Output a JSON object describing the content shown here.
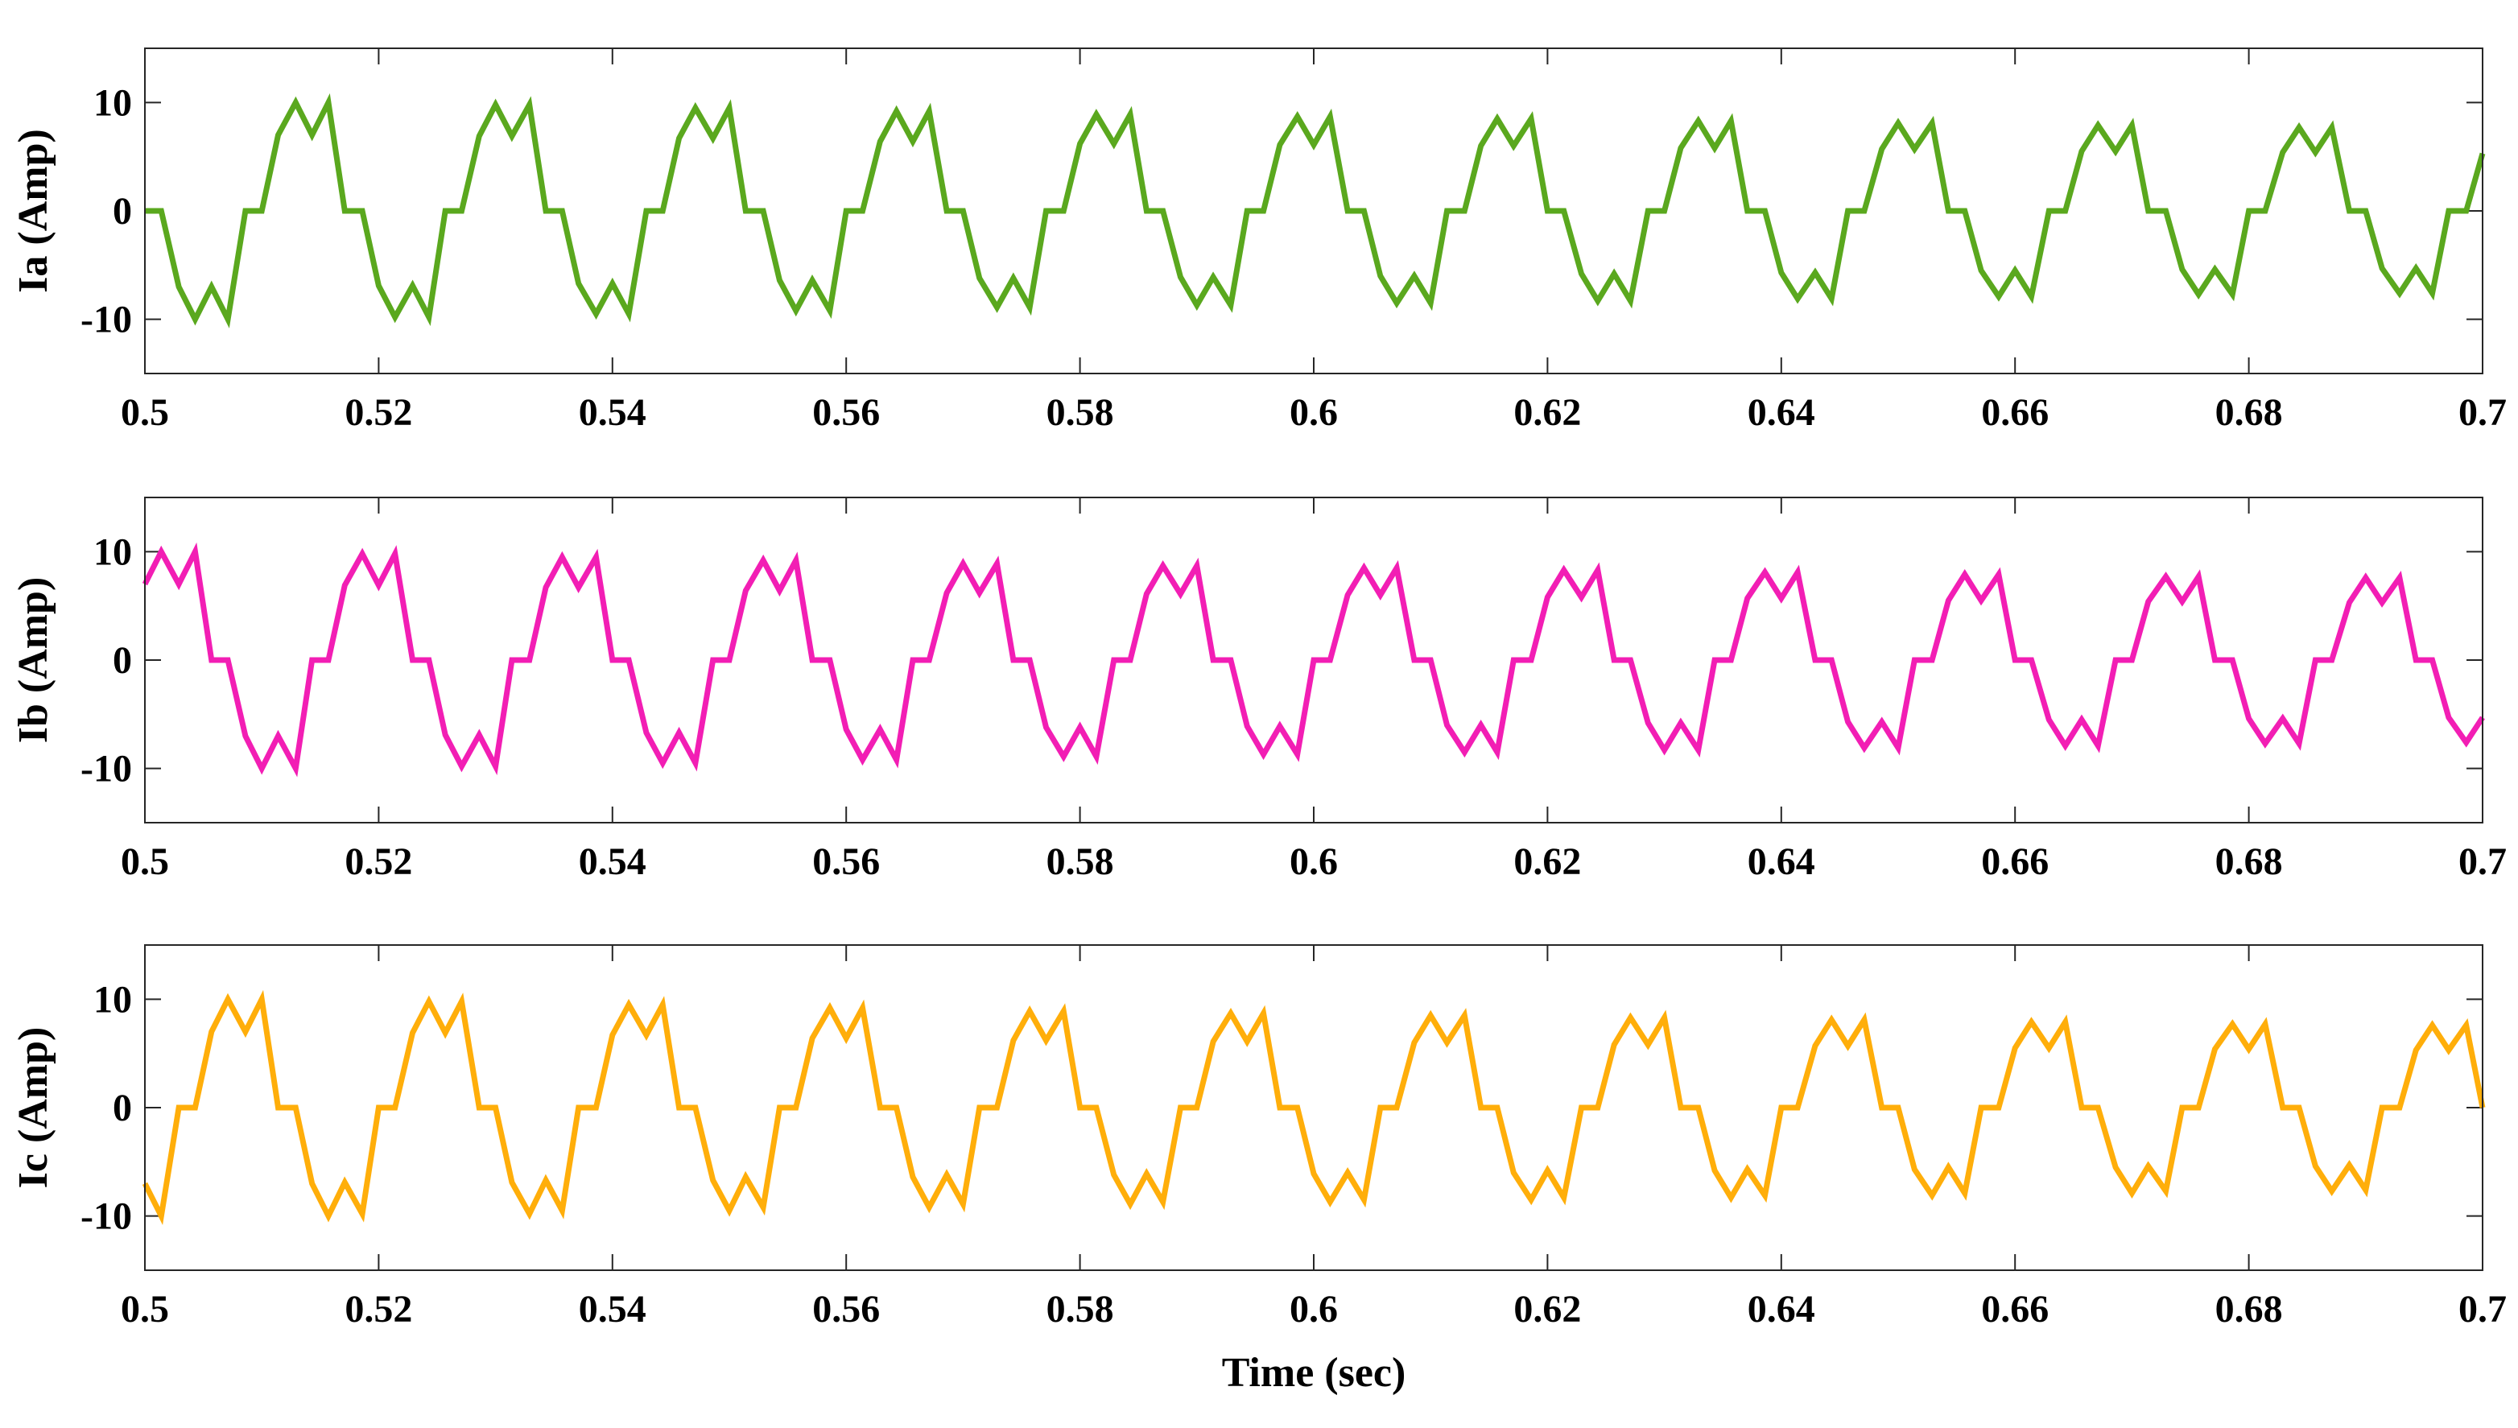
{
  "chart_data": [
    {
      "type": "line",
      "ylabel": "Ia (Amp)",
      "color": "#5aa81e",
      "xlim": [
        0.5,
        0.7
      ],
      "xticks": [
        0.5,
        0.52,
        0.54,
        0.56,
        0.58,
        0.6,
        0.62,
        0.64,
        0.66,
        0.68,
        0.7
      ],
      "ylim": [
        -15,
        15
      ],
      "yticks": [
        -10,
        0,
        10
      ],
      "x": [
        0.5,
        0.5014,
        0.5029,
        0.5043,
        0.5057,
        0.5071,
        0.5086,
        0.51,
        0.5114,
        0.5129,
        0.5143,
        0.5157,
        0.5171,
        0.5186,
        0.52,
        0.5214,
        0.5229,
        0.5243,
        0.5257,
        0.5271,
        0.5286,
        0.53,
        0.5314,
        0.5329,
        0.5343,
        0.5357,
        0.5371,
        0.5386,
        0.54,
        0.5414,
        0.5429,
        0.5443,
        0.5457,
        0.5471,
        0.5486,
        0.55,
        0.5514,
        0.5529,
        0.5543,
        0.5557,
        0.5571,
        0.5586,
        0.56,
        0.5614,
        0.5629,
        0.5643,
        0.5657,
        0.5671,
        0.5686,
        0.57,
        0.5714,
        0.5729,
        0.5743,
        0.5757,
        0.5771,
        0.5786,
        0.58,
        0.5814,
        0.5829,
        0.5843,
        0.5857,
        0.5871,
        0.5886,
        0.59,
        0.5914,
        0.5929,
        0.5943,
        0.5957,
        0.5971,
        0.5986,
        0.6,
        0.6014,
        0.6029,
        0.6043,
        0.6057,
        0.6071,
        0.6086,
        0.61,
        0.6114,
        0.6129,
        0.6143,
        0.6157,
        0.6171,
        0.6186,
        0.62,
        0.6214,
        0.6229,
        0.6243,
        0.6257,
        0.6271,
        0.6286,
        0.63,
        0.6314,
        0.6329,
        0.6343,
        0.6357,
        0.6371,
        0.6386,
        0.64,
        0.6414,
        0.6429,
        0.6443,
        0.6457,
        0.6471,
        0.6486,
        0.65,
        0.6514,
        0.6529,
        0.6543,
        0.6557,
        0.6571,
        0.6586,
        0.66,
        0.6614,
        0.6629,
        0.6643,
        0.6657,
        0.6671,
        0.6686,
        0.67,
        0.6714,
        0.6729,
        0.6743,
        0.6757,
        0.6771,
        0.6786,
        0.68,
        0.6814,
        0.6829,
        0.6843,
        0.6857,
        0.6871,
        0.6886,
        0.69,
        0.6914,
        0.6929,
        0.6943,
        0.6957,
        0.6971,
        0.6986,
        0.7
      ],
      "values": [
        0,
        0,
        -7,
        -10,
        -7,
        -10,
        0,
        0,
        7,
        10,
        7,
        10,
        0,
        0,
        -6.9,
        -9.8,
        -6.9,
        -9.8,
        0,
        0,
        6.9,
        9.8,
        6.9,
        9.8,
        0,
        0,
        -6.7,
        -9.5,
        -6.7,
        -9.5,
        0,
        0,
        6.7,
        9.5,
        6.7,
        9.5,
        0,
        0,
        -6.4,
        -9.2,
        -6.4,
        -9.2,
        0,
        0,
        6.4,
        9.2,
        6.4,
        9.2,
        0,
        0,
        -6.2,
        -8.9,
        -6.2,
        -8.9,
        0,
        0,
        6.2,
        8.9,
        6.2,
        8.9,
        0,
        0,
        -6.1,
        -8.7,
        -6.1,
        -8.7,
        0,
        0,
        6.1,
        8.7,
        6.1,
        8.7,
        0,
        0,
        -6,
        -8.5,
        -6,
        -8.5,
        0,
        0,
        6,
        8.5,
        6,
        8.5,
        0,
        0,
        -5.8,
        -8.3,
        -5.8,
        -8.3,
        0,
        0,
        5.8,
        8.3,
        5.8,
        8.3,
        0,
        0,
        -5.7,
        -8.1,
        -5.7,
        -8.1,
        0,
        0,
        5.7,
        8.1,
        5.7,
        8.1,
        0,
        0,
        -5.5,
        -7.9,
        -5.5,
        -7.9,
        0,
        0,
        5.5,
        7.9,
        5.5,
        7.9,
        0,
        0,
        -5.4,
        -7.7,
        -5.4,
        -7.7,
        0,
        0,
        5.4,
        7.7,
        5.4,
        7.7,
        0,
        0,
        -5.3,
        -7.6,
        -5.3,
        -7.6,
        0,
        0,
        5.3
      ]
    },
    {
      "type": "line",
      "ylabel": "Ib (Amp)",
      "color": "#f21eb4",
      "xlim": [
        0.5,
        0.7
      ],
      "xticks": [
        0.5,
        0.52,
        0.54,
        0.56,
        0.58,
        0.6,
        0.62,
        0.64,
        0.66,
        0.68,
        0.7
      ],
      "ylim": [
        -15,
        15
      ],
      "yticks": [
        -10,
        0,
        10
      ],
      "x": [
        0.5,
        0.5014,
        0.5029,
        0.5043,
        0.5057,
        0.5071,
        0.5086,
        0.51,
        0.5114,
        0.5129,
        0.5143,
        0.5157,
        0.5171,
        0.5186,
        0.52,
        0.5214,
        0.5229,
        0.5243,
        0.5257,
        0.5271,
        0.5286,
        0.53,
        0.5314,
        0.5329,
        0.5343,
        0.5357,
        0.5371,
        0.5386,
        0.54,
        0.5414,
        0.5429,
        0.5443,
        0.5457,
        0.5471,
        0.5486,
        0.55,
        0.5514,
        0.5529,
        0.5543,
        0.5557,
        0.5571,
        0.5586,
        0.56,
        0.5614,
        0.5629,
        0.5643,
        0.5657,
        0.5671,
        0.5686,
        0.57,
        0.5714,
        0.5729,
        0.5743,
        0.5757,
        0.5771,
        0.5786,
        0.58,
        0.5814,
        0.5829,
        0.5843,
        0.5857,
        0.5871,
        0.5886,
        0.59,
        0.5914,
        0.5929,
        0.5943,
        0.5957,
        0.5971,
        0.5986,
        0.6,
        0.6014,
        0.6029,
        0.6043,
        0.6057,
        0.6071,
        0.6086,
        0.61,
        0.6114,
        0.6129,
        0.6143,
        0.6157,
        0.6171,
        0.6186,
        0.62,
        0.6214,
        0.6229,
        0.6243,
        0.6257,
        0.6271,
        0.6286,
        0.63,
        0.6314,
        0.6329,
        0.6343,
        0.6357,
        0.6371,
        0.6386,
        0.64,
        0.6414,
        0.6429,
        0.6443,
        0.6457,
        0.6471,
        0.6486,
        0.65,
        0.6514,
        0.6529,
        0.6543,
        0.6557,
        0.6571,
        0.6586,
        0.66,
        0.6614,
        0.6629,
        0.6643,
        0.6657,
        0.6671,
        0.6686,
        0.67,
        0.6714,
        0.6729,
        0.6743,
        0.6757,
        0.6771,
        0.6786,
        0.68,
        0.6814,
        0.6829,
        0.6843,
        0.6857,
        0.6871,
        0.6886,
        0.69,
        0.6914,
        0.6929,
        0.6943,
        0.6957,
        0.6971,
        0.6986,
        0.7
      ],
      "values": [
        7,
        10,
        7,
        10,
        0,
        0,
        -7,
        -10,
        -7,
        -10,
        0,
        0,
        6.9,
        9.8,
        6.9,
        9.8,
        0,
        0,
        -6.9,
        -9.8,
        -6.9,
        -9.8,
        0,
        0,
        6.7,
        9.5,
        6.7,
        9.5,
        0,
        0,
        -6.7,
        -9.5,
        -6.7,
        -9.5,
        0,
        0,
        6.4,
        9.2,
        6.4,
        9.2,
        0,
        0,
        -6.4,
        -9.2,
        -6.4,
        -9.2,
        0,
        0,
        6.2,
        8.9,
        6.2,
        8.9,
        0,
        0,
        -6.2,
        -8.9,
        -6.2,
        -8.9,
        0,
        0,
        6.1,
        8.7,
        6.1,
        8.7,
        0,
        0,
        -6.1,
        -8.7,
        -6.1,
        -8.7,
        0,
        0,
        6,
        8.5,
        6,
        8.5,
        0,
        0,
        -6,
        -8.5,
        -6,
        -8.5,
        0,
        0,
        5.8,
        8.3,
        5.8,
        8.3,
        0,
        0,
        -5.8,
        -8.3,
        -5.8,
        -8.3,
        0,
        0,
        5.7,
        8.1,
        5.7,
        8.1,
        0,
        0,
        -5.7,
        -8.1,
        -5.7,
        -8.1,
        0,
        0,
        5.5,
        7.9,
        5.5,
        7.9,
        0,
        0,
        -5.5,
        -7.9,
        -5.5,
        -7.9,
        0,
        0,
        5.4,
        7.7,
        5.4,
        7.7,
        0,
        0,
        -5.4,
        -7.7,
        -5.4,
        -7.7,
        0,
        0,
        5.3,
        7.6,
        5.3,
        7.6,
        0,
        0,
        -5.3,
        -7.6,
        -5.3
      ]
    },
    {
      "type": "line",
      "ylabel": "Ic (Amp)",
      "xlabel": "Time (sec)",
      "color": "#ffae0a",
      "xlim": [
        0.5,
        0.7
      ],
      "xticks": [
        0.5,
        0.52,
        0.54,
        0.56,
        0.58,
        0.6,
        0.62,
        0.64,
        0.66,
        0.68,
        0.7
      ],
      "ylim": [
        -15,
        15
      ],
      "yticks": [
        -10,
        0,
        10
      ],
      "x": [
        0.5,
        0.5014,
        0.5029,
        0.5043,
        0.5057,
        0.5071,
        0.5086,
        0.51,
        0.5114,
        0.5129,
        0.5143,
        0.5157,
        0.5171,
        0.5186,
        0.52,
        0.5214,
        0.5229,
        0.5243,
        0.5257,
        0.5271,
        0.5286,
        0.53,
        0.5314,
        0.5329,
        0.5343,
        0.5357,
        0.5371,
        0.5386,
        0.54,
        0.5414,
        0.5429,
        0.5443,
        0.5457,
        0.5471,
        0.5486,
        0.55,
        0.5514,
        0.5529,
        0.5543,
        0.5557,
        0.5571,
        0.5586,
        0.56,
        0.5614,
        0.5629,
        0.5643,
        0.5657,
        0.5671,
        0.5686,
        0.57,
        0.5714,
        0.5729,
        0.5743,
        0.5757,
        0.5771,
        0.5786,
        0.58,
        0.5814,
        0.5829,
        0.5843,
        0.5857,
        0.5871,
        0.5886,
        0.59,
        0.5914,
        0.5929,
        0.5943,
        0.5957,
        0.5971,
        0.5986,
        0.6,
        0.6014,
        0.6029,
        0.6043,
        0.6057,
        0.6071,
        0.6086,
        0.61,
        0.6114,
        0.6129,
        0.6143,
        0.6157,
        0.6171,
        0.6186,
        0.62,
        0.6214,
        0.6229,
        0.6243,
        0.6257,
        0.6271,
        0.6286,
        0.63,
        0.6314,
        0.6329,
        0.6343,
        0.6357,
        0.6371,
        0.6386,
        0.64,
        0.6414,
        0.6429,
        0.6443,
        0.6457,
        0.6471,
        0.6486,
        0.65,
        0.6514,
        0.6529,
        0.6543,
        0.6557,
        0.6571,
        0.6586,
        0.66,
        0.6614,
        0.6629,
        0.6643,
        0.6657,
        0.6671,
        0.6686,
        0.67,
        0.6714,
        0.6729,
        0.6743,
        0.6757,
        0.6771,
        0.6786,
        0.68,
        0.6814,
        0.6829,
        0.6843,
        0.6857,
        0.6871,
        0.6886,
        0.69,
        0.6914,
        0.6929,
        0.6943,
        0.6957,
        0.6971,
        0.6986,
        0.7
      ],
      "values": [
        -7,
        -10,
        0,
        0,
        7,
        10,
        7,
        10,
        0,
        0,
        -7,
        -10,
        -6.9,
        -9.8,
        0,
        0,
        6.9,
        9.8,
        6.9,
        9.8,
        0,
        0,
        -6.9,
        -9.8,
        -6.7,
        -9.5,
        0,
        0,
        6.7,
        9.5,
        6.7,
        9.5,
        0,
        0,
        -6.7,
        -9.5,
        -6.4,
        -9.2,
        0,
        0,
        6.4,
        9.2,
        6.4,
        9.2,
        0,
        0,
        -6.4,
        -9.2,
        -6.2,
        -8.9,
        0,
        0,
        6.2,
        8.9,
        6.2,
        8.9,
        0,
        0,
        -6.2,
        -8.9,
        -6.1,
        -8.7,
        0,
        0,
        6.1,
        8.7,
        6.1,
        8.7,
        0,
        0,
        -6.1,
        -8.7,
        -6,
        -8.5,
        0,
        0,
        6,
        8.5,
        6,
        8.5,
        0,
        0,
        -6,
        -8.5,
        -5.8,
        -8.3,
        0,
        0,
        5.8,
        8.3,
        5.8,
        8.3,
        0,
        0,
        -5.8,
        -8.3,
        -5.7,
        -8.1,
        0,
        0,
        5.7,
        8.1,
        5.7,
        8.1,
        0,
        0,
        -5.7,
        -8.1,
        -5.5,
        -7.9,
        0,
        0,
        5.5,
        7.9,
        5.5,
        7.9,
        0,
        0,
        -5.5,
        -7.9,
        -5.4,
        -7.7,
        0,
        0,
        5.4,
        7.7,
        5.4,
        7.7,
        0,
        0,
        -5.4,
        -7.7,
        -5.3,
        -7.6,
        0,
        0,
        5.3,
        7.6,
        5.3,
        7.6,
        0
      ]
    }
  ]
}
